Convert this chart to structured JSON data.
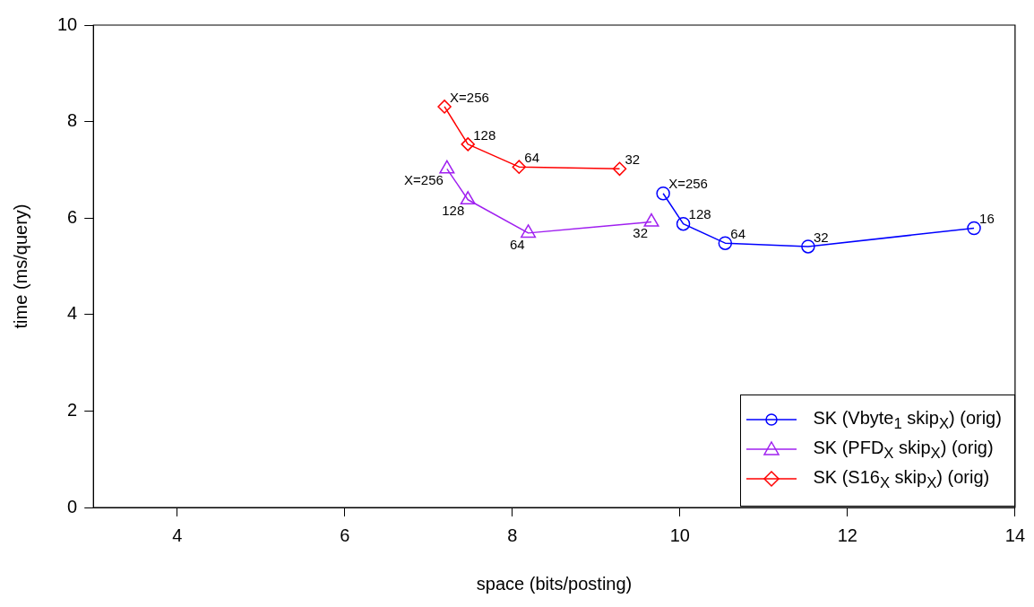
{
  "chart_data": {
    "type": "line",
    "xlabel": "space (bits/posting)",
    "ylabel": "time (ms/query)",
    "xlim": [
      3,
      14
    ],
    "xticks": [
      4,
      6,
      8,
      10,
      12,
      14
    ],
    "ylim": [
      0,
      10
    ],
    "yticks": [
      0,
      2,
      4,
      6,
      8,
      10
    ],
    "grid": false,
    "legend": "bottom right",
    "line_style": "solid",
    "series": [
      {
        "name": "SK (Vbyte$_{1}$ skip$_{X}$) (orig)",
        "color": "#0000ff",
        "marker": "circle",
        "x": [
          9.8,
          10.04,
          10.54,
          11.53,
          13.51
        ],
        "values": [
          6.51,
          5.88,
          5.48,
          5.41,
          5.79
        ]
      },
      {
        "name": "SK (PFD$_{X}$ skip$_{X}$) (orig)",
        "color": "#a020f0",
        "marker": "triangle",
        "x": [
          7.22,
          7.47,
          8.19,
          9.66
        ],
        "values": [
          7.02,
          6.38,
          5.69,
          5.92
        ]
      },
      {
        "name": "SK (S16$_{X}$ skip$_{X}$) (orig)",
        "color": "#ff0000",
        "marker": "diamond",
        "x": [
          7.19,
          7.47,
          8.08,
          9.28
        ],
        "values": [
          8.31,
          7.53,
          7.06,
          7.02
        ]
      }
    ],
    "annotations": [
      {
        "text": "X=256",
        "x": 9.8,
        "y": 6.51
      },
      {
        "text": "128",
        "x": 10.04,
        "y": 5.88
      },
      {
        "text": "64",
        "x": 10.54,
        "y": 5.48
      },
      {
        "text": "32",
        "x": 11.53,
        "y": 5.41
      },
      {
        "text": "16",
        "x": 13.51,
        "y": 5.79
      },
      {
        "text": "X=256",
        "x": 7.22,
        "y": 7.02
      },
      {
        "text": "128",
        "x": 7.47,
        "y": 6.38
      },
      {
        "text": "64",
        "x": 8.19,
        "y": 5.69
      },
      {
        "text": "32",
        "x": 9.66,
        "y": 5.92
      },
      {
        "text": "X=256",
        "x": 7.19,
        "y": 8.31
      },
      {
        "text": "128",
        "x": 7.47,
        "y": 7.53
      },
      {
        "text": "64",
        "x": 8.08,
        "y": 7.06
      },
      {
        "text": "32",
        "x": 9.28,
        "y": 7.02
      }
    ]
  }
}
